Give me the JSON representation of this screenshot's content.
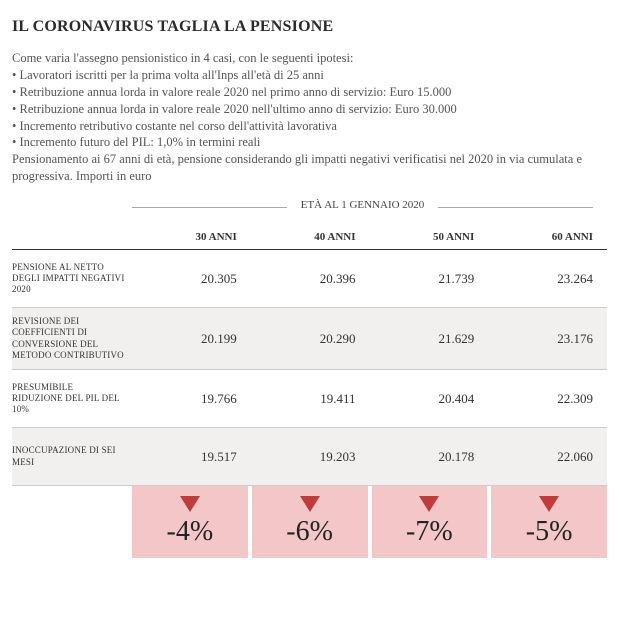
{
  "title": "IL CORONAVIRUS TAGLIA LA PENSIONE",
  "intro_lines": [
    "Come varia l'assegno pensionistico in 4 casi, con le seguenti ipotesi:",
    "• Lavoratori iscritti per la prima volta all'Inps all'età di 25 anni",
    "• Retribuzione annua lorda in valore reale 2020 nel primo anno di servizio: Euro 15.000",
    "• Retribuzione annua lorda in valore reale 2020 nell'ultimo anno di servizio: Euro 30.000",
    "• Incremento retributivo costante nel corso dell'attività lavorativa",
    "• Incremento futuro del PIL: 1,0% in termini reali",
    "Pensionamento ai 67 anni di età, pensione considerando gli impatti negativi verificatisi nel 2020 in via cumulata e progressiva. Importi in euro"
  ],
  "table": {
    "super_header": "ETÀ AL 1 GENNAIO 2020",
    "columns": [
      "30 ANNI",
      "40 ANNI",
      "50 ANNI",
      "60 ANNI"
    ],
    "rows": [
      {
        "label": "PENSIONE AL NETTO DEGLI IMPATTI NEGATIVI 2020",
        "values": [
          "20.305",
          "20.396",
          "21.739",
          "23.264"
        ]
      },
      {
        "label": "REVISIONE DEI COEFFICIENTI DI CONVERSIONE DEL METODO CONTRIBUTIVO",
        "values": [
          "20.199",
          "20.290",
          "21.629",
          "23.176"
        ]
      },
      {
        "label": "PRESUMIBILE RIDUZIONE DEL PIL DEL 10%",
        "values": [
          "19.766",
          "19.411",
          "20.404",
          "22.309"
        ]
      },
      {
        "label": "INOCCUPAZIONE DI SEI MESI",
        "values": [
          "19.517",
          "19.203",
          "20.178",
          "22.060"
        ]
      }
    ],
    "impact": {
      "values": [
        "-4%",
        "-6%",
        "-7%",
        "-5%"
      ],
      "cell_bg": "#f3c7c7",
      "arrow_color": "#c23b3b"
    },
    "row_alt_bg": "#f1f0ee",
    "border_color": "#cccccc",
    "header_border": "#333333"
  }
}
